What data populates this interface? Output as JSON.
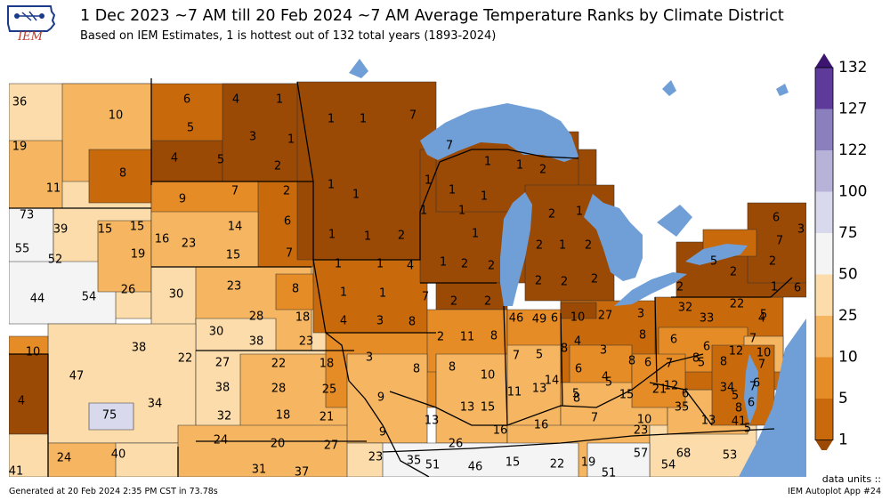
{
  "header": {
    "title": "1 Dec 2023 ~7 AM till 20 Feb 2024 ~7 AM Average Temperature Ranks by Climate District",
    "subtitle": "Based on IEM Estimates, 1 is hottest out of 132 total years (1893-2024)",
    "logo_text": "IEM"
  },
  "colors": {
    "r1": "#9b4a05",
    "r5": "#c86a0c",
    "r10": "#e68c26",
    "r25": "#f6b560",
    "r50": "#fbdcaa",
    "r75": "#f4f4f4",
    "r100": "#d9d9ee",
    "r122": "#b7b2d8",
    "r127": "#8b7fbd",
    "r132": "#5e3a9a",
    "top": "#3b1570",
    "water": "#6f9fd6"
  },
  "colorbar": {
    "ticks": [
      "132",
      "127",
      "122",
      "100",
      "75",
      "50",
      "25",
      "10",
      "5",
      "1"
    ]
  },
  "ranks": [
    {
      "v": "36",
      "c": "r50"
    },
    {
      "v": "10",
      "c": "r10"
    },
    {
      "v": "19",
      "c": "r25"
    },
    {
      "v": "8",
      "c": "r5"
    },
    {
      "v": "11",
      "c": "r25"
    },
    {
      "v": "73",
      "c": "r75"
    },
    {
      "v": "39",
      "c": "r50"
    },
    {
      "v": "15",
      "c": "r25"
    },
    {
      "v": "15",
      "c": "r25"
    },
    {
      "v": "19",
      "c": "r25"
    },
    {
      "v": "55",
      "c": "r75"
    },
    {
      "v": "52",
      "c": "r75"
    },
    {
      "v": "44",
      "c": "r50"
    },
    {
      "v": "54",
      "c": "r75"
    },
    {
      "v": "26",
      "c": "r50"
    },
    {
      "v": "6",
      "c": "r5"
    },
    {
      "v": "4",
      "c": "r1"
    },
    {
      "v": "1",
      "c": "r1"
    },
    {
      "v": "5",
      "c": "r5"
    },
    {
      "v": "3",
      "c": "r1"
    },
    {
      "v": "1",
      "c": "r1"
    },
    {
      "v": "4",
      "c": "r1"
    },
    {
      "v": "5",
      "c": "r5"
    },
    {
      "v": "2",
      "c": "r1"
    },
    {
      "v": "9",
      "c": "r10"
    },
    {
      "v": "7",
      "c": "r10"
    },
    {
      "v": "2",
      "c": "r1"
    },
    {
      "v": "16",
      "c": "r25"
    },
    {
      "v": "23",
      "c": "r25"
    },
    {
      "v": "14",
      "c": "r25"
    },
    {
      "v": "6",
      "c": "r10"
    },
    {
      "v": "15",
      "c": "r25"
    },
    {
      "v": "7",
      "c": "r10"
    },
    {
      "v": "30",
      "c": "r50"
    },
    {
      "v": "23",
      "c": "r25"
    },
    {
      "v": "8",
      "c": "r10"
    },
    {
      "v": "28",
      "c": "r50"
    },
    {
      "v": "18",
      "c": "r25"
    },
    {
      "v": "30",
      "c": "r50"
    },
    {
      "v": "38",
      "c": "r50"
    },
    {
      "v": "23",
      "c": "r25"
    },
    {
      "v": "10",
      "c": "r10"
    },
    {
      "v": "4",
      "c": "r1"
    },
    {
      "v": "47",
      "c": "r50"
    },
    {
      "v": "38",
      "c": "r50"
    },
    {
      "v": "22",
      "c": "r25"
    },
    {
      "v": "75",
      "c": "r100"
    },
    {
      "v": "34",
      "c": "r50"
    },
    {
      "v": "27",
      "c": "r50"
    },
    {
      "v": "22",
      "c": "r25"
    },
    {
      "v": "18",
      "c": "r25"
    },
    {
      "v": "38",
      "c": "r50"
    },
    {
      "v": "28",
      "c": "r50"
    },
    {
      "v": "25",
      "c": "r25"
    },
    {
      "v": "32",
      "c": "r50"
    },
    {
      "v": "18",
      "c": "r25"
    },
    {
      "v": "21",
      "c": "r25"
    },
    {
      "v": "24",
      "c": "r25"
    },
    {
      "v": "40",
      "c": "r50"
    },
    {
      "v": "24",
      "c": "r25"
    },
    {
      "v": "20",
      "c": "r25"
    },
    {
      "v": "27",
      "c": "r50"
    },
    {
      "v": "41",
      "c": "r50"
    },
    {
      "v": "31",
      "c": "r50"
    },
    {
      "v": "37",
      "c": "r50"
    },
    {
      "v": "1",
      "c": "r1"
    },
    {
      "v": "1",
      "c": "r1"
    },
    {
      "v": "1",
      "c": "r1"
    },
    {
      "v": "1",
      "c": "r1"
    },
    {
      "v": "1",
      "c": "r1"
    },
    {
      "v": "1",
      "c": "r1"
    },
    {
      "v": "2",
      "c": "r1"
    },
    {
      "v": "1",
      "c": "r1"
    },
    {
      "v": "1",
      "c": "r1"
    },
    {
      "v": "4",
      "c": "r1"
    },
    {
      "v": "1",
      "c": "r1"
    },
    {
      "v": "1",
      "c": "r1"
    },
    {
      "v": "7",
      "c": "r5"
    },
    {
      "v": "4",
      "c": "r1"
    },
    {
      "v": "3",
      "c": "r1"
    },
    {
      "v": "8",
      "c": "r5"
    },
    {
      "v": "7",
      "c": "r5"
    },
    {
      "v": "7",
      "c": "r5"
    },
    {
      "v": "1",
      "c": "r1"
    },
    {
      "v": "1",
      "c": "r1"
    },
    {
      "v": "1",
      "c": "r1"
    },
    {
      "v": "1",
      "c": "r1"
    },
    {
      "v": "1",
      "c": "r1"
    },
    {
      "v": "2",
      "c": "r1"
    },
    {
      "v": "1",
      "c": "r1"
    },
    {
      "v": "1",
      "c": "r1"
    },
    {
      "v": "1",
      "c": "r1"
    },
    {
      "v": "1",
      "c": "r1"
    },
    {
      "v": "2",
      "c": "r1"
    },
    {
      "v": "2",
      "c": "r1"
    },
    {
      "v": "2",
      "c": "r1"
    },
    {
      "v": "2",
      "c": "r1"
    },
    {
      "v": "2",
      "c": "r1"
    },
    {
      "v": "1",
      "c": "r1"
    },
    {
      "v": "2",
      "c": "r1"
    },
    {
      "v": "1",
      "c": "r1"
    },
    {
      "v": "2",
      "c": "r1"
    },
    {
      "v": "2",
      "c": "r1"
    },
    {
      "v": "2",
      "c": "r1"
    },
    {
      "v": "2",
      "c": "r1"
    },
    {
      "v": "3",
      "c": "r1"
    },
    {
      "v": "2",
      "c": "r1"
    },
    {
      "v": "11",
      "c": "r25"
    },
    {
      "v": "8",
      "c": "r10"
    },
    {
      "v": "8",
      "c": "r10"
    },
    {
      "v": "8",
      "c": "r10"
    },
    {
      "v": "9",
      "c": "r10"
    },
    {
      "v": "10",
      "c": "r10"
    },
    {
      "v": "13",
      "c": "r25"
    },
    {
      "v": "13",
      "c": "r25"
    },
    {
      "v": "15",
      "c": "r25"
    },
    {
      "v": "9",
      "c": "r10"
    },
    {
      "v": "16",
      "c": "r25"
    },
    {
      "v": "26",
      "c": "r50"
    },
    {
      "v": "23",
      "c": "r25"
    },
    {
      "v": "35",
      "c": "r50"
    },
    {
      "v": "51",
      "c": "r75"
    },
    {
      "v": "46",
      "c": "r50"
    },
    {
      "v": "46",
      "c": "r50"
    },
    {
      "v": "49",
      "c": "r50"
    },
    {
      "v": "6",
      "c": "r10"
    },
    {
      "v": "7",
      "c": "r10"
    },
    {
      "v": "5",
      "c": "r5"
    },
    {
      "v": "8",
      "c": "r10"
    },
    {
      "v": "11",
      "c": "r25"
    },
    {
      "v": "13",
      "c": "r25"
    },
    {
      "v": "14",
      "c": "r25"
    },
    {
      "v": "16",
      "c": "r25"
    },
    {
      "v": "10",
      "c": "r10"
    },
    {
      "v": "27",
      "c": "r50"
    },
    {
      "v": "3",
      "c": "r1"
    },
    {
      "v": "4",
      "c": "r1"
    },
    {
      "v": "3",
      "c": "r1"
    },
    {
      "v": "8",
      "c": "r10"
    },
    {
      "v": "6",
      "c": "r5"
    },
    {
      "v": "4",
      "c": "r1"
    },
    {
      "v": "8",
      "c": "r10"
    },
    {
      "v": "6",
      "c": "r5"
    },
    {
      "v": "5",
      "c": "r5"
    },
    {
      "v": "5",
      "c": "r5"
    },
    {
      "v": "8",
      "c": "r10"
    },
    {
      "v": "7",
      "c": "r10"
    },
    {
      "v": "15",
      "c": "r25"
    },
    {
      "v": "21",
      "c": "r25"
    },
    {
      "v": "12",
      "c": "r25"
    },
    {
      "v": "10",
      "c": "r10"
    },
    {
      "v": "35",
      "c": "r50"
    },
    {
      "v": "23",
      "c": "r25"
    },
    {
      "v": "13",
      "c": "r25"
    },
    {
      "v": "41",
      "c": "r50"
    },
    {
      "v": "15",
      "c": "r25"
    },
    {
      "v": "22",
      "c": "r25"
    },
    {
      "v": "19",
      "c": "r25"
    },
    {
      "v": "51",
      "c": "r75"
    },
    {
      "v": "57",
      "c": "r75"
    },
    {
      "v": "54",
      "c": "r75"
    },
    {
      "v": "68",
      "c": "r75"
    },
    {
      "v": "53",
      "c": "r75"
    },
    {
      "v": "32",
      "c": "r50"
    },
    {
      "v": "33",
      "c": "r50"
    },
    {
      "v": "22",
      "c": "r25"
    },
    {
      "v": "4",
      "c": "r1"
    },
    {
      "v": "5",
      "c": "r5"
    },
    {
      "v": "6",
      "c": "r5"
    },
    {
      "v": "6",
      "c": "r5"
    },
    {
      "v": "12",
      "c": "r25"
    },
    {
      "v": "7",
      "c": "r10"
    },
    {
      "v": "10",
      "c": "r10"
    },
    {
      "v": "8",
      "c": "r10"
    },
    {
      "v": "8",
      "c": "r10"
    },
    {
      "v": "7",
      "c": "r10"
    },
    {
      "v": "5",
      "c": "r5"
    },
    {
      "v": "6",
      "c": "r5"
    },
    {
      "v": "34",
      "c": "r50"
    },
    {
      "v": "5",
      "c": "r5"
    },
    {
      "v": "8",
      "c": "r10"
    },
    {
      "v": "7",
      "c": "r10"
    },
    {
      "v": "7",
      "c": "r10"
    },
    {
      "v": "6",
      "c": "r5"
    },
    {
      "v": "6",
      "c": "r5"
    },
    {
      "v": "5",
      "c": "r5"
    },
    {
      "v": "6",
      "c": "r5"
    },
    {
      "v": "7",
      "c": "r10"
    },
    {
      "v": "3",
      "c": "r1"
    },
    {
      "v": "5",
      "c": "r5"
    },
    {
      "v": "2",
      "c": "r1"
    },
    {
      "v": "2",
      "c": "r1"
    },
    {
      "v": "2",
      "c": "r1"
    },
    {
      "v": "1",
      "c": "r1"
    },
    {
      "v": "6",
      "c": "r5"
    },
    {
      "v": "4",
      "c": "r1"
    },
    {
      "v": "2",
      "c": "r1"
    }
  ],
  "footer": {
    "generated": "Generated at 20 Feb 2024 2:35 PM CST in 73.78s",
    "units": "data units ::",
    "app": "IEM Autoplot App #24"
  }
}
